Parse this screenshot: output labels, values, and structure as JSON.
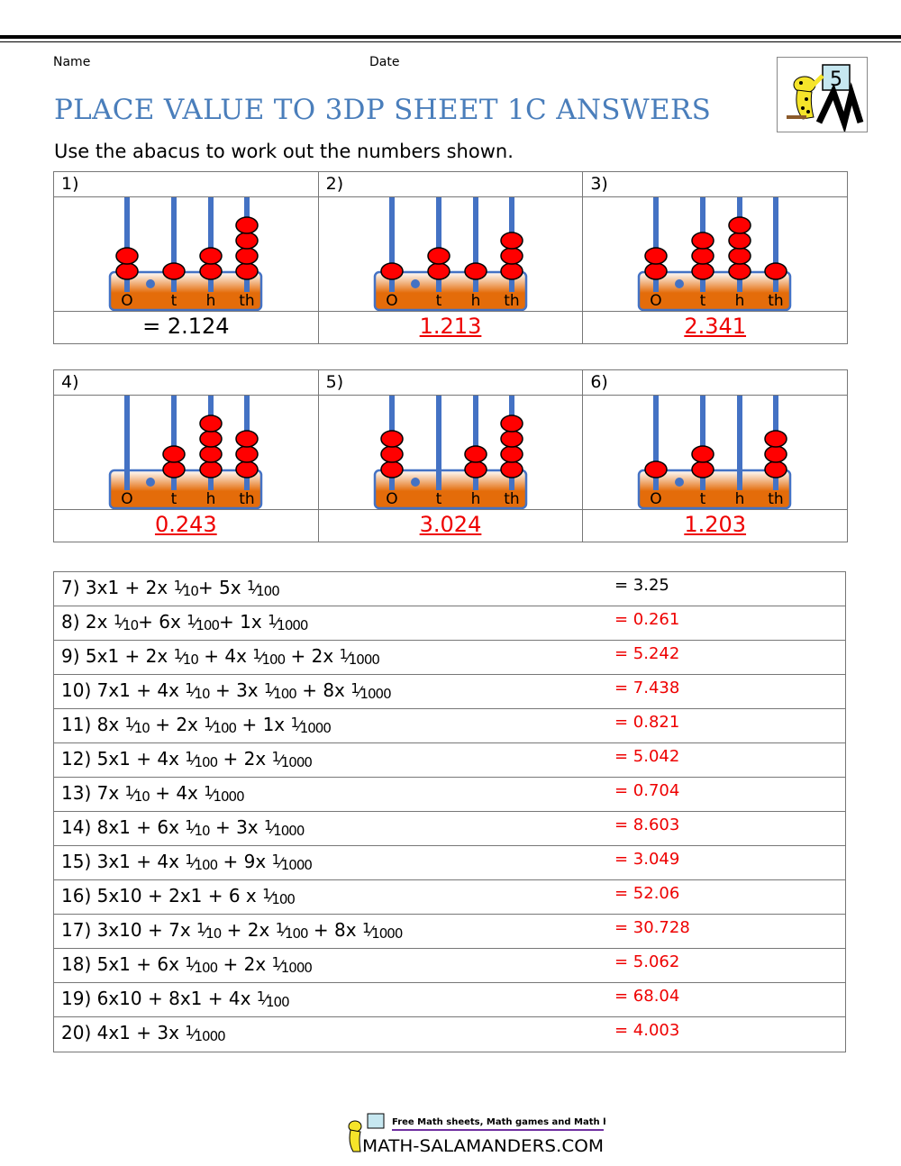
{
  "header": {
    "name_label": "Name",
    "date_label": "Date",
    "title": "PLACE VALUE TO 3DP SHEET 1C ANSWERS",
    "instructions": "Use the abacus to work out the numbers shown.",
    "logo_text": "5"
  },
  "abacus_labels": [
    "O",
    "t",
    "h",
    "th"
  ],
  "abacus_colors": {
    "rod": "#4472c4",
    "bead": "#ff0000",
    "frame": "#e46c0a"
  },
  "abacus_questions": [
    {
      "num": "1)",
      "digits": [
        2,
        1,
        2,
        4
      ],
      "answer": "= 2.124",
      "answer_style": "given"
    },
    {
      "num": "2)",
      "digits": [
        1,
        2,
        1,
        3
      ],
      "answer": "1.213",
      "answer_style": "red"
    },
    {
      "num": "3)",
      "digits": [
        2,
        3,
        4,
        1
      ],
      "answer": "2.341",
      "answer_style": "red"
    },
    {
      "num": "4)",
      "digits": [
        0,
        2,
        4,
        3
      ],
      "answer": "0.243",
      "answer_style": "red"
    },
    {
      "num": "5)",
      "digits": [
        3,
        0,
        2,
        4
      ],
      "answer": "3.024",
      "answer_style": "red"
    },
    {
      "num": "6)",
      "digits": [
        1,
        2,
        0,
        3
      ],
      "answer": "1.203",
      "answer_style": "red"
    }
  ],
  "problems": [
    {
      "parts": [
        "7) 3x1 + 2x ",
        {
          "d": "10"
        },
        "+ 5x ",
        {
          "d": "100"
        }
      ],
      "answer": "= 3.25",
      "given": true
    },
    {
      "parts": [
        "8) 2x ",
        {
          "d": "10"
        },
        "+ 6x ",
        {
          "d": "100"
        },
        "+ 1x ",
        {
          "d": "1000"
        }
      ],
      "answer": "= 0.261"
    },
    {
      "parts": [
        "9) 5x1 + 2x ",
        {
          "d": "10"
        },
        " + 4x ",
        {
          "d": "100"
        },
        " + 2x ",
        {
          "d": "1000"
        }
      ],
      "answer": "= 5.242"
    },
    {
      "parts": [
        "10) 7x1 + 4x ",
        {
          "d": "10"
        },
        " + 3x ",
        {
          "d": "100"
        },
        " + 8x ",
        {
          "d": "1000"
        }
      ],
      "answer": "= 7.438"
    },
    {
      "parts": [
        "11) 8x ",
        {
          "d": "10"
        },
        " + 2x ",
        {
          "d": "100"
        },
        " + 1x ",
        {
          "d": "1000"
        }
      ],
      "answer": "= 0.821"
    },
    {
      "parts": [
        "12) 5x1 + 4x ",
        {
          "d": "100"
        },
        " + 2x ",
        {
          "d": "1000"
        }
      ],
      "answer": "= 5.042"
    },
    {
      "parts": [
        "13) 7x ",
        {
          "d": "10"
        },
        " + 4x ",
        {
          "d": "1000"
        }
      ],
      "answer": "= 0.704"
    },
    {
      "parts": [
        "14) 8x1 + 6x ",
        {
          "d": "10"
        },
        " + 3x ",
        {
          "d": "1000"
        }
      ],
      "answer": "= 8.603"
    },
    {
      "parts": [
        "15) 3x1 + 4x ",
        {
          "d": "100"
        },
        " + 9x ",
        {
          "d": "1000"
        }
      ],
      "answer": "= 3.049"
    },
    {
      "parts": [
        "16) 5x10 + 2x1 + 6 x ",
        {
          "d": "100"
        }
      ],
      "answer": "= 52.06"
    },
    {
      "parts": [
        "17) 3x10 + 7x ",
        {
          "d": "10"
        },
        " + 2x ",
        {
          "d": "100"
        },
        " + 8x ",
        {
          "d": "1000"
        }
      ],
      "answer": "= 30.728"
    },
    {
      "parts": [
        "18) 5x1 + 6x ",
        {
          "d": "100"
        },
        " + 2x ",
        {
          "d": "1000"
        }
      ],
      "answer": "= 5.062"
    },
    {
      "parts": [
        "19) 6x10 + 8x1 + 4x ",
        {
          "d": "100"
        }
      ],
      "answer": "= 68.04"
    },
    {
      "parts": [
        "20) 4x1 + 3x ",
        {
          "d": "1000"
        }
      ],
      "answer": "= 4.003"
    }
  ],
  "footer": {
    "tagline": "Free Math sheets, Math games and Math help",
    "site": "MATH-SALAMANDERS.COM"
  }
}
